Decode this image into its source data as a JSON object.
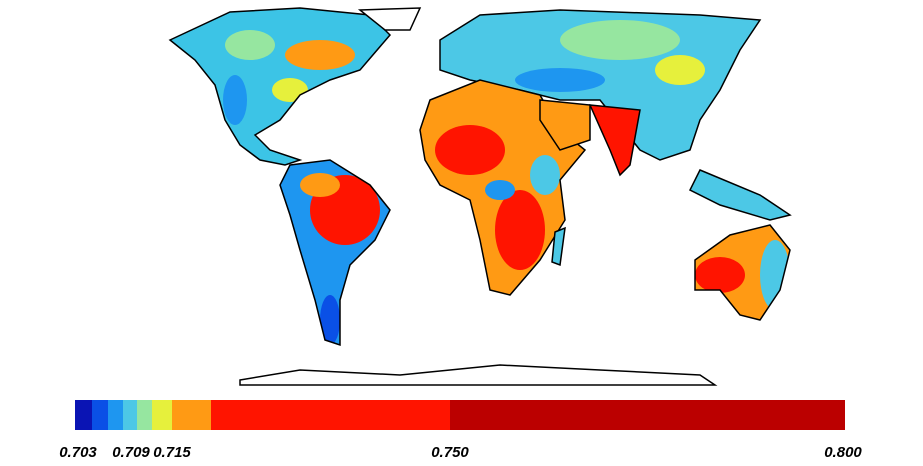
{
  "colorbar": {
    "colors": [
      "#0a14b4",
      "#0a50e6",
      "#1e96f0",
      "#4cc8e6",
      "#96e6a0",
      "#e6f03c",
      "#ff9a14",
      "#ff1400",
      "#bb0000"
    ],
    "ticks": [
      0.703,
      0.709,
      0.715,
      {
        "value": 0.75,
        "label": "0.750"
      },
      {
        "value": 0.8,
        "label": "0.800"
      }
    ]
  }
}
